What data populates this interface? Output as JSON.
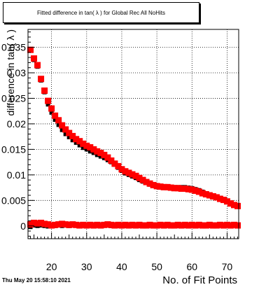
{
  "timestamp": "Thu May 20 15:58:10 2021",
  "chart_data": {
    "type": "scatter",
    "title": "Fitted difference in tan( λ ) for Global Rec All NoHits",
    "xlabel": "No. of Fit Points",
    "ylabel": "difference in tan( λ )",
    "xlim": [
      13.3,
      73.3
    ],
    "ylim": [
      -0.0025,
      0.0385
    ],
    "grid": true,
    "x_ticks": [
      20,
      30,
      40,
      50,
      60,
      70
    ],
    "y_ticks": [
      0,
      0.005,
      0.01,
      0.015,
      0.02,
      0.025,
      0.03,
      0.035
    ],
    "y_tick_labels": [
      "0",
      "0.005",
      "0.01",
      "0.015",
      "0.02",
      "0.025",
      "0.03",
      "0.035"
    ],
    "series": [
      {
        "color": "#000000",
        "marker": "square-small",
        "x": [
          14,
          15,
          16,
          17,
          18,
          19,
          20,
          21,
          22,
          23,
          24,
          25,
          26,
          27,
          28,
          29,
          30,
          31,
          32,
          33,
          34,
          35,
          36,
          37,
          38,
          39,
          40,
          41,
          42,
          43,
          44,
          45,
          46,
          47,
          48,
          49,
          50,
          51,
          52,
          53,
          54,
          55,
          56,
          57,
          58,
          59,
          60,
          61,
          62,
          63,
          64,
          65,
          66,
          67,
          68,
          69,
          70,
          71,
          72,
          73
        ],
        "y": [
          0.0345,
          0.0325,
          0.0312,
          0.0285,
          0.0262,
          0.0238,
          0.0222,
          0.0208,
          0.0198,
          0.0188,
          0.018,
          0.0174,
          0.0168,
          0.0163,
          0.0158,
          0.0153,
          0.015,
          0.0146,
          0.0143,
          0.0139,
          0.0136,
          0.0133,
          0.0129,
          0.0125,
          0.012,
          0.0114,
          0.0108,
          0.0103,
          0.01,
          0.0097,
          0.0094,
          0.009,
          0.0087,
          0.0084,
          0.0081,
          0.0079,
          0.0078,
          0.0077,
          0.0077,
          0.0077,
          0.0076,
          0.0076,
          0.0076,
          0.0076,
          0.0076,
          0.0075,
          0.0074,
          0.0072,
          0.007,
          0.0067,
          0.0064,
          0.0061,
          0.0059,
          0.0057,
          0.0055,
          0.0052,
          0.0049,
          0.0045,
          0.0042,
          0.004
        ]
      },
      {
        "color": "#000000",
        "marker": "square-small",
        "x": [
          14,
          15,
          16,
          17,
          18,
          19,
          20,
          21,
          22,
          23,
          24,
          25,
          26,
          27,
          28,
          29,
          30,
          31,
          32,
          33,
          34,
          35,
          36,
          37,
          38,
          39,
          40,
          41,
          42,
          43,
          44,
          45,
          46,
          47,
          48,
          49,
          50,
          51,
          52,
          53,
          54,
          55,
          56,
          57,
          58,
          59,
          60,
          61,
          62,
          63,
          64,
          65,
          66,
          67,
          68,
          69,
          70,
          71,
          72,
          73
        ],
        "y": [
          -0.0002,
          0.0001,
          0.0,
          0.0001,
          0.0,
          -0.0001,
          0.0001,
          0.0,
          0.0001,
          0.0,
          0.0001,
          0.0,
          0.0002,
          0.0001,
          0.0,
          0.0001,
          0.0,
          0.0001,
          0.0,
          0.0001,
          0.0,
          0.0001,
          0.0002,
          0.0,
          0.0001,
          0.0,
          0.0001,
          0.0,
          0.0001,
          0.0,
          0.0001,
          0.0,
          0.0001,
          0.0,
          0.0001,
          0.0,
          0.0001,
          0.0001,
          0.0,
          0.0001,
          0.0,
          0.0001,
          0.0,
          0.0001,
          0.0,
          0.0001,
          0.0001,
          0.0,
          0.0001,
          0.0,
          0.0001,
          0.0,
          0.0001,
          0.0,
          0.0001,
          0.0,
          0.0001,
          0.0,
          0.0001,
          0.0001
        ]
      },
      {
        "color": "#ff0000",
        "marker": "square-large",
        "x": [
          14,
          15,
          16,
          17,
          18,
          19,
          20,
          21,
          22,
          23,
          24,
          25,
          26,
          27,
          28,
          29,
          30,
          31,
          32,
          33,
          34,
          35,
          36,
          37,
          38,
          39,
          40,
          41,
          42,
          43,
          44,
          45,
          46,
          47,
          48,
          49,
          50,
          51,
          52,
          53,
          54,
          55,
          56,
          57,
          58,
          59,
          60,
          61,
          62,
          63,
          64,
          65,
          66,
          67,
          68,
          69,
          70,
          71,
          72,
          73
        ],
        "y": [
          0.0345,
          0.0328,
          0.0315,
          0.0288,
          0.0265,
          0.0245,
          0.023,
          0.0216,
          0.0207,
          0.0197,
          0.0189,
          0.0182,
          0.0176,
          0.017,
          0.0166,
          0.0161,
          0.0157,
          0.0154,
          0.015,
          0.0146,
          0.0143,
          0.0139,
          0.0134,
          0.0128,
          0.0122,
          0.0117,
          0.0111,
          0.0107,
          0.0104,
          0.0101,
          0.0098,
          0.0094,
          0.009,
          0.0086,
          0.0083,
          0.008,
          0.0078,
          0.0077,
          0.0076,
          0.0076,
          0.0075,
          0.0074,
          0.0074,
          0.0073,
          0.0073,
          0.0072,
          0.0071,
          0.0069,
          0.0067,
          0.0064,
          0.0062,
          0.006,
          0.0058,
          0.0056,
          0.0053,
          0.0051,
          0.0048,
          0.0044,
          0.0041,
          0.0039
        ]
      },
      {
        "color": "#ff0000",
        "marker": "square-large",
        "x": [
          14,
          15,
          16,
          17,
          18,
          19,
          20,
          21,
          22,
          23,
          24,
          25,
          26,
          27,
          28,
          29,
          30,
          31,
          32,
          33,
          34,
          35,
          36,
          37,
          38,
          39,
          40,
          41,
          42,
          43,
          44,
          45,
          46,
          47,
          48,
          49,
          50,
          51,
          52,
          53,
          54,
          55,
          56,
          57,
          58,
          59,
          60,
          61,
          62,
          63,
          64,
          65,
          66,
          67,
          68,
          69,
          70,
          71,
          72,
          73
        ],
        "y": [
          0.0003,
          0.0006,
          0.0005,
          0.0006,
          0.0004,
          0.0003,
          0.0001,
          0.0002,
          0.0003,
          0.0004,
          0.0003,
          0.0002,
          0.0003,
          0.0002,
          0.0001,
          0.0002,
          0.0001,
          0.0002,
          0.0001,
          0.0002,
          0.0001,
          0.0002,
          0.0003,
          0.0002,
          0.0001,
          0.0002,
          0.0001,
          0.0002,
          0.0001,
          0.0002,
          0.0001,
          0.0002,
          0.0001,
          0.0001,
          0.0002,
          0.0001,
          0.0001,
          0.0002,
          0.0001,
          0.0002,
          0.0001,
          0.0001,
          0.0002,
          0.0001,
          0.0002,
          0.0001,
          0.0002,
          0.0001,
          0.0002,
          0.0001,
          0.0001,
          0.0002,
          0.0001,
          0.0001,
          0.0002,
          0.0001,
          0.0002,
          0.0001,
          0.0002,
          0.0001
        ]
      }
    ]
  }
}
